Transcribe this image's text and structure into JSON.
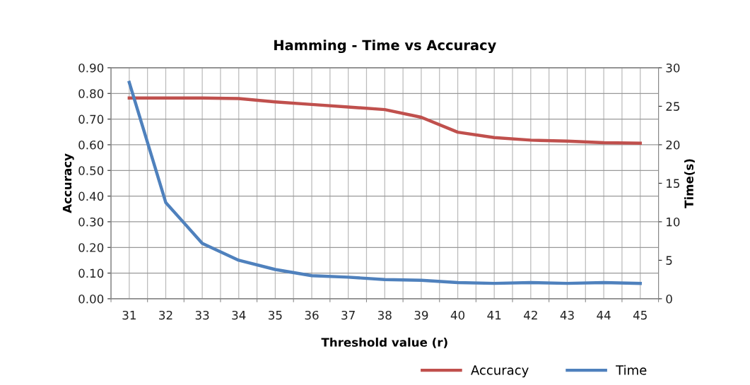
{
  "chart_data": {
    "type": "line",
    "title": "Hamming - Time vs Accuracy",
    "xlabel": "Threshold value (r)",
    "ylabel": "Accuracy",
    "y2label": "Time(s)",
    "categories": [
      "31",
      "32",
      "33",
      "34",
      "35",
      "36",
      "37",
      "38",
      "39",
      "40",
      "41",
      "42",
      "43",
      "44",
      "45"
    ],
    "series": [
      {
        "name": "Accuracy",
        "color": "#c0504d",
        "values": [
          0.782,
          0.782,
          0.782,
          0.78,
          0.767,
          0.757,
          0.747,
          0.737,
          0.707,
          0.649,
          0.628,
          0.618,
          0.614,
          0.608,
          0.606
        ]
      },
      {
        "name": "Time",
        "color": "#4f81bd",
        "axis": "y2",
        "values": [
          28.1,
          12.5,
          7.2,
          5.0,
          3.8,
          3.0,
          2.8,
          2.5,
          2.4,
          2.1,
          2.0,
          2.1,
          2.0,
          2.1,
          2.0
        ]
      }
    ],
    "ylim": [
      0,
      0.9
    ],
    "yticks": [
      {
        "value": 0,
        "label": "0.00"
      },
      {
        "value": 0.1,
        "label": "0.10"
      },
      {
        "value": 0.2,
        "label": "0.20"
      },
      {
        "value": 0.3,
        "label": "0.30"
      },
      {
        "value": 0.4,
        "label": "0.40"
      },
      {
        "value": 0.5,
        "label": "0.50"
      },
      {
        "value": 0.6,
        "label": "0.60"
      },
      {
        "value": 0.7,
        "label": "0.70"
      },
      {
        "value": 0.8,
        "label": "0.80"
      },
      {
        "value": 0.9,
        "label": "0.90"
      }
    ],
    "y2lim": [
      0,
      30
    ],
    "y2ticks": [
      0,
      5,
      10,
      15,
      20,
      25,
      30
    ],
    "grid": true,
    "legend": "bottom right",
    "marker": "none",
    "line_style": "solid"
  }
}
